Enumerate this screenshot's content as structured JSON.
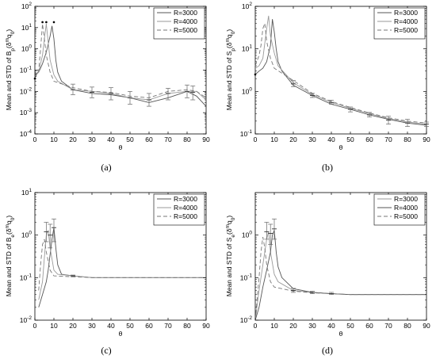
{
  "chart_data": [
    {
      "type": "line",
      "caption": "(a)",
      "xlabel": "θ",
      "ylabel": "Mean and STD of B_p(δ^m q_0)",
      "yscale": "log",
      "xlim": [
        0,
        90
      ],
      "ylim": [
        0.0001,
        100
      ],
      "x_ticks": [
        0,
        10,
        20,
        30,
        40,
        50,
        60,
        70,
        80,
        90
      ],
      "y_ticks": [
        {
          "value": 0.0001,
          "base": "10",
          "exp": "-4"
        },
        {
          "value": 0.001,
          "base": "10",
          "exp": "-3"
        },
        {
          "value": 0.01,
          "base": "10",
          "exp": "-2"
        },
        {
          "value": 0.1,
          "base": "10",
          "exp": "-1"
        },
        {
          "value": 1,
          "base": "10",
          "exp": "0"
        },
        {
          "value": 10,
          "base": "10",
          "exp": "1"
        },
        {
          "value": 100,
          "base": "10",
          "exp": "2"
        }
      ],
      "legend_position": "top-right",
      "series": [
        {
          "name": "R=3000",
          "color": "#555555",
          "dash": "",
          "x": [
            0,
            2,
            4,
            6,
            8,
            9,
            10,
            11,
            12,
            14,
            20,
            30,
            40,
            50,
            60,
            70,
            80,
            85,
            90
          ],
          "y": [
            0.06,
            0.08,
            0.2,
            0.7,
            4,
            12,
            3,
            0.3,
            0.08,
            0.03,
            0.012,
            0.008,
            0.007,
            0.005,
            0.003,
            0.005,
            0.01,
            0.006,
            0.002
          ]
        },
        {
          "name": "R=4000",
          "color": "#9a9a9a",
          "dash": "",
          "x": [
            0,
            2,
            4,
            5,
            6,
            7,
            8,
            10,
            12,
            20,
            30,
            40,
            50,
            60,
            70,
            80,
            85,
            90
          ],
          "y": [
            0.05,
            0.08,
            0.5,
            3,
            15,
            2,
            0.3,
            0.06,
            0.03,
            0.012,
            0.01,
            0.008,
            0.005,
            0.004,
            0.008,
            0.01,
            0.01,
            0.004
          ]
        },
        {
          "name": "R=5000",
          "color": "#777777",
          "dash": "5,3",
          "x": [
            0,
            2,
            3,
            4,
            5,
            6,
            8,
            10,
            20,
            30,
            40,
            50,
            60,
            70,
            80,
            85,
            90
          ],
          "y": [
            0.04,
            0.1,
            1,
            15,
            3,
            0.5,
            0.08,
            0.03,
            0.015,
            0.01,
            0.009,
            0.006,
            0.005,
            0.01,
            0.012,
            0.01,
            0.005
          ]
        }
      ],
      "errorbars": [
        {
          "x": 20,
          "y": 0.012,
          "lo": 0.007,
          "hi": 0.022
        },
        {
          "x": 30,
          "y": 0.009,
          "lo": 0.005,
          "hi": 0.016
        },
        {
          "x": 40,
          "y": 0.008,
          "lo": 0.004,
          "hi": 0.015
        },
        {
          "x": 50,
          "y": 0.005,
          "lo": 0.0025,
          "hi": 0.01
        },
        {
          "x": 60,
          "y": 0.004,
          "lo": 0.002,
          "hi": 0.008
        },
        {
          "x": 70,
          "y": 0.008,
          "lo": 0.004,
          "hi": 0.014
        },
        {
          "x": 80,
          "y": 0.01,
          "lo": 0.005,
          "hi": 0.02
        },
        {
          "x": 83,
          "y": 0.009,
          "lo": 0.004,
          "hi": 0.018
        }
      ],
      "markers": [
        {
          "x": 4,
          "y": 18
        },
        {
          "x": 6,
          "y": 18
        },
        {
          "x": 10,
          "y": 18
        },
        {
          "x": 0,
          "y": 0.04
        }
      ]
    },
    {
      "type": "line",
      "caption": "(b)",
      "xlabel": "θ",
      "ylabel": "Mean and STD of S_p(δ^m q_0)",
      "yscale": "log",
      "xlim": [
        0,
        90
      ],
      "ylim": [
        0.1,
        100
      ],
      "x_ticks": [
        0,
        10,
        20,
        30,
        40,
        50,
        60,
        70,
        80,
        90
      ],
      "y_ticks": [
        {
          "value": 0.1,
          "base": "10",
          "exp": "-1"
        },
        {
          "value": 1,
          "base": "10",
          "exp": "0"
        },
        {
          "value": 10,
          "base": "10",
          "exp": "1"
        },
        {
          "value": 100,
          "base": "10",
          "exp": "2"
        }
      ],
      "legend_position": "top-right",
      "series": [
        {
          "name": "R=3000",
          "color": "#555555",
          "dash": "",
          "x": [
            0,
            2,
            4,
            6,
            8,
            9,
            10,
            11,
            12,
            14,
            20,
            30,
            40,
            50,
            60,
            70,
            80,
            90
          ],
          "y": [
            2.5,
            3,
            3.5,
            5,
            12,
            50,
            25,
            10,
            5,
            3,
            1.4,
            0.8,
            0.5,
            0.38,
            0.28,
            0.22,
            0.18,
            0.16
          ]
        },
        {
          "name": "R=4000",
          "color": "#9a9a9a",
          "dash": "",
          "x": [
            0,
            2,
            4,
            6,
            7,
            8,
            10,
            12,
            20,
            30,
            40,
            50,
            60,
            70,
            80,
            90
          ],
          "y": [
            3.5,
            4,
            6,
            30,
            60,
            20,
            8,
            4,
            1.6,
            0.85,
            0.55,
            0.4,
            0.3,
            0.23,
            0.19,
            0.17
          ]
        },
        {
          "name": "R=5000",
          "color": "#777777",
          "dash": "5,3",
          "x": [
            0,
            2,
            3,
            4,
            5,
            6,
            8,
            10,
            20,
            30,
            40,
            50,
            60,
            70,
            80,
            90
          ],
          "y": [
            4,
            7,
            12,
            30,
            40,
            15,
            6,
            3.5,
            1.8,
            0.9,
            0.58,
            0.42,
            0.31,
            0.24,
            0.2,
            0.18
          ]
        }
      ],
      "errorbars": [
        {
          "x": 20,
          "y": 1.5,
          "lo": 1.3,
          "hi": 1.8
        },
        {
          "x": 30,
          "y": 0.8,
          "lo": 0.72,
          "hi": 0.9
        },
        {
          "x": 40,
          "y": 0.55,
          "lo": 0.5,
          "hi": 0.62
        },
        {
          "x": 50,
          "y": 0.38,
          "lo": 0.33,
          "hi": 0.43
        },
        {
          "x": 60,
          "y": 0.28,
          "lo": 0.25,
          "hi": 0.32
        },
        {
          "x": 70,
          "y": 0.21,
          "lo": 0.17,
          "hi": 0.26
        },
        {
          "x": 80,
          "y": 0.18,
          "lo": 0.15,
          "hi": 0.22
        },
        {
          "x": 90,
          "y": 0.17,
          "lo": 0.15,
          "hi": 0.19
        }
      ],
      "markers": [
        {
          "x": 0,
          "y": 2.5
        }
      ]
    },
    {
      "type": "line",
      "caption": "(c)",
      "xlabel": "θ",
      "ylabel": "Mean and STD of B_e(δ^m q_0)",
      "yscale": "log",
      "xlim": [
        0,
        90
      ],
      "ylim": [
        0.01,
        10
      ],
      "x_ticks": [
        0,
        10,
        20,
        30,
        40,
        50,
        60,
        70,
        80,
        90
      ],
      "y_ticks": [
        {
          "value": 0.01,
          "base": "10",
          "exp": "-2"
        },
        {
          "value": 0.1,
          "base": "10",
          "exp": "-1"
        },
        {
          "value": 1,
          "base": "10",
          "exp": "0"
        },
        {
          "value": 10,
          "base": "10",
          "exp": "1"
        }
      ],
      "legend_position": "top-right",
      "series": [
        {
          "name": "R=3000",
          "color": "#555555",
          "dash": "",
          "x": [
            2,
            4,
            6,
            7,
            8,
            9,
            10,
            11,
            12,
            14,
            20,
            30,
            40,
            50,
            60,
            70,
            80,
            90
          ],
          "y": [
            0.02,
            0.04,
            0.08,
            0.15,
            0.35,
            0.8,
            1.5,
            0.5,
            0.2,
            0.12,
            0.11,
            0.1,
            0.1,
            0.1,
            0.1,
            0.1,
            0.1,
            0.1
          ]
        },
        {
          "name": "R=4000",
          "color": "#9a9a9a",
          "dash": "",
          "x": [
            2,
            4,
            5,
            6,
            7,
            8,
            10,
            12,
            20,
            30,
            40,
            50,
            60,
            70,
            80,
            90
          ],
          "y": [
            0.03,
            0.08,
            0.3,
            1.0,
            1.3,
            0.5,
            0.15,
            0.12,
            0.11,
            0.1,
            0.1,
            0.1,
            0.1,
            0.1,
            0.1,
            0.1
          ]
        },
        {
          "name": "R=5000",
          "color": "#777777",
          "dash": "5,3",
          "x": [
            2,
            3,
            4,
            5,
            6,
            8,
            10,
            20,
            30,
            40,
            50,
            60,
            70,
            80,
            90
          ],
          "y": [
            0.05,
            0.2,
            0.6,
            0.8,
            0.4,
            0.15,
            0.11,
            0.105,
            0.1,
            0.1,
            0.1,
            0.1,
            0.1,
            0.1,
            0.1
          ]
        }
      ],
      "errorbars": [
        {
          "x": 6,
          "y": 1.2,
          "lo": 0.7,
          "hi": 2.0
        },
        {
          "x": 8,
          "y": 1.0,
          "lo": 0.5,
          "hi": 1.8
        },
        {
          "x": 10,
          "y": 1.5,
          "lo": 0.7,
          "hi": 2.4
        },
        {
          "x": 20,
          "y": 0.11,
          "lo": 0.105,
          "hi": 0.115
        }
      ],
      "markers": []
    },
    {
      "type": "line",
      "caption": "(d)",
      "xlabel": "θ",
      "ylabel": "Mean and STD of S_e(δ^m q_0)",
      "yscale": "log",
      "xlim": [
        0,
        90
      ],
      "ylim": [
        0.01,
        10
      ],
      "x_ticks": [
        0,
        10,
        20,
        30,
        40,
        50,
        60,
        70,
        80,
        90
      ],
      "y_ticks": [
        {
          "value": 0.01,
          "base": "10",
          "exp": "-2"
        },
        {
          "value": 0.1,
          "base": "10",
          "exp": "-1"
        },
        {
          "value": 1,
          "base": "10",
          "exp": "0"
        }
      ],
      "legend_position": "top-right",
      "series": [
        {
          "name": "R=3000",
          "color": "#9a9a9a",
          "dash": "",
          "x": [
            0,
            2,
            4,
            6,
            7,
            8,
            10,
            12,
            20,
            30,
            40,
            50,
            60,
            70,
            80,
            90
          ],
          "y": [
            0.01,
            0.05,
            0.2,
            0.8,
            1.2,
            0.4,
            0.12,
            0.08,
            0.05,
            0.045,
            0.042,
            0.04,
            0.04,
            0.04,
            0.04,
            0.04
          ]
        },
        {
          "name": "R=4000",
          "color": "#555555",
          "dash": "",
          "x": [
            0,
            2,
            4,
            6,
            8,
            9,
            10,
            11,
            12,
            14,
            20,
            30,
            40,
            50,
            60,
            70,
            80,
            90
          ],
          "y": [
            0.008,
            0.02,
            0.06,
            0.15,
            0.4,
            1.0,
            1.3,
            0.4,
            0.18,
            0.1,
            0.055,
            0.045,
            0.042,
            0.04,
            0.04,
            0.04,
            0.04,
            0.04
          ]
        },
        {
          "name": "R=5000",
          "color": "#777777",
          "dash": "5,3",
          "x": [
            0,
            2,
            3,
            4,
            5,
            6,
            8,
            10,
            20,
            30,
            40,
            50,
            60,
            70,
            80,
            90
          ],
          "y": [
            0.01,
            0.1,
            0.4,
            0.9,
            0.5,
            0.2,
            0.08,
            0.06,
            0.048,
            0.044,
            0.042,
            0.04,
            0.04,
            0.04,
            0.04,
            0.04
          ]
        }
      ],
      "errorbars": [
        {
          "x": 6,
          "y": 1.2,
          "lo": 0.8,
          "hi": 2.0
        },
        {
          "x": 8,
          "y": 1.1,
          "lo": 0.6,
          "hi": 1.8
        },
        {
          "x": 10,
          "y": 1.4,
          "lo": 0.8,
          "hi": 2.4
        },
        {
          "x": 20,
          "y": 0.05,
          "lo": 0.045,
          "hi": 0.056
        },
        {
          "x": 30,
          "y": 0.045,
          "lo": 0.042,
          "hi": 0.048
        },
        {
          "x": 40,
          "y": 0.042,
          "lo": 0.04,
          "hi": 0.045
        }
      ],
      "markers": []
    }
  ]
}
